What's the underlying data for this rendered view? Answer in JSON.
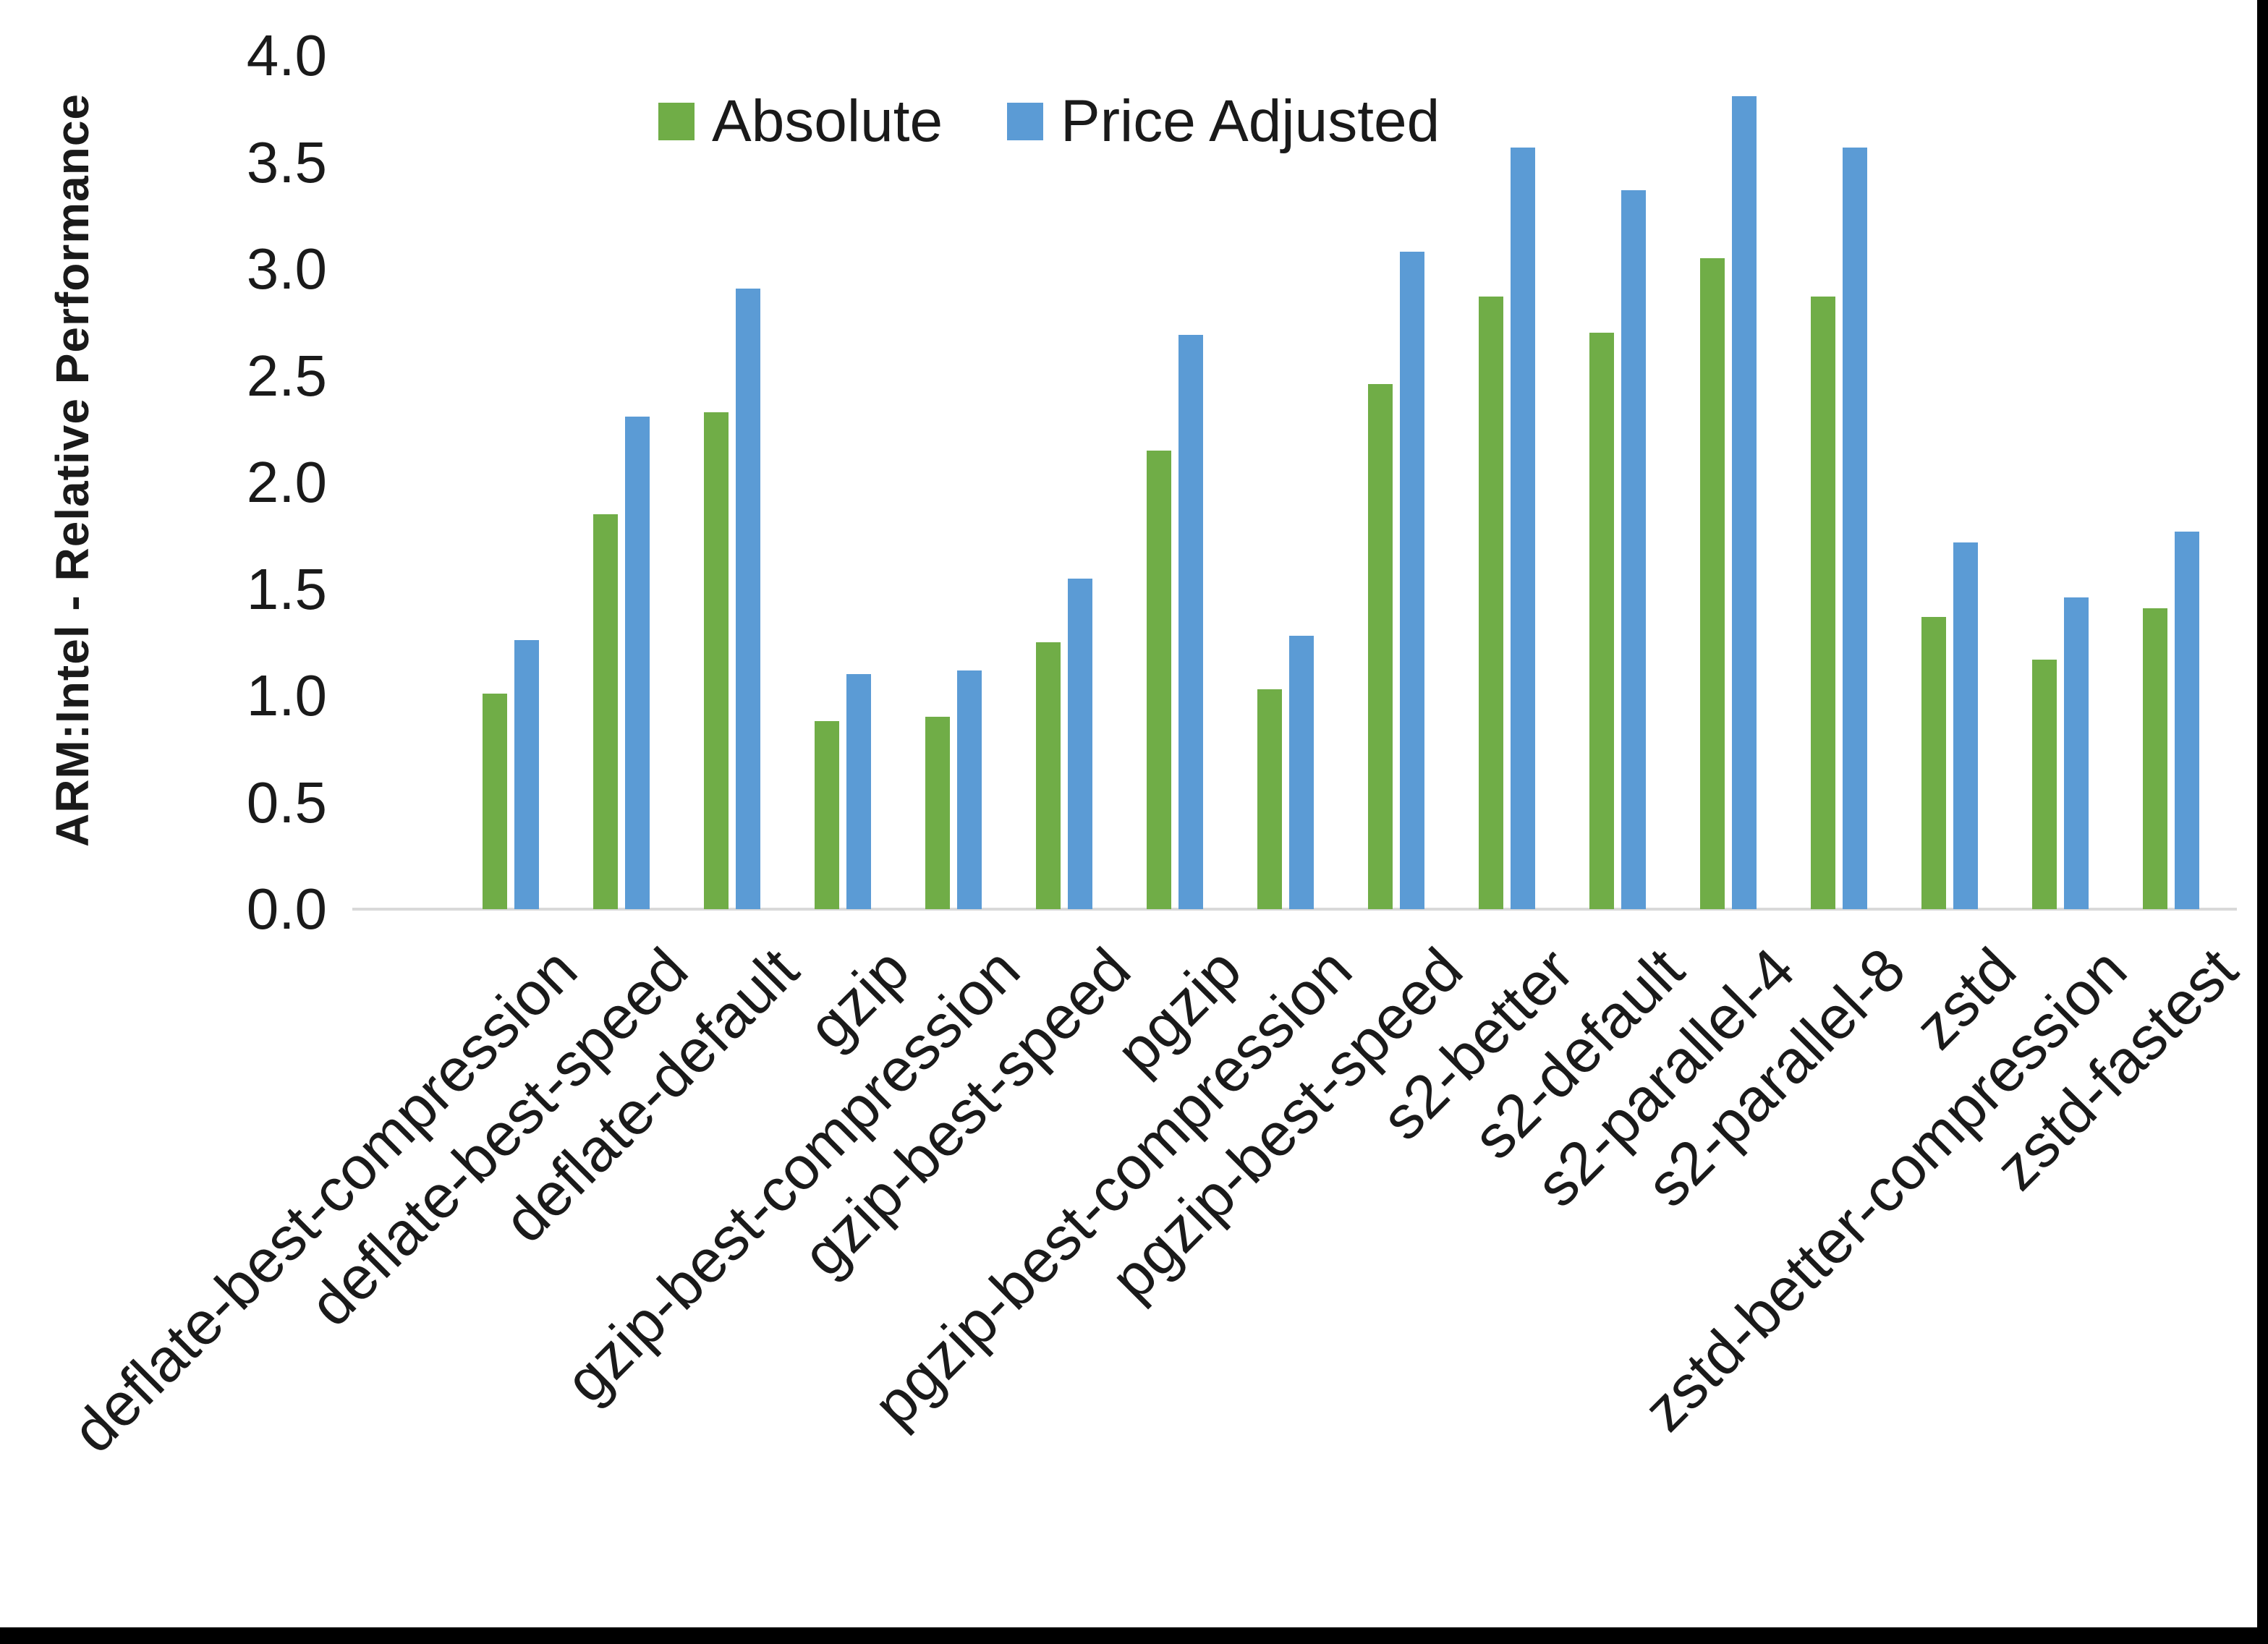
{
  "figure": {
    "y_axis_title": "ARM:Intel - Relative Performance"
  },
  "legend": {
    "items": [
      {
        "label": "Absolute",
        "color": "#70AD47"
      },
      {
        "label": "Price Adjusted",
        "color": "#5B9BD5"
      }
    ],
    "position": "top"
  },
  "chart_data": {
    "type": "bar",
    "title": "",
    "xlabel": "",
    "ylabel": "ARM:Intel - Relative Performance",
    "ylim": [
      0,
      4
    ],
    "ytick_step": 0.5,
    "ytick_labels": [
      "0.0",
      "0.5",
      "1.0",
      "1.5",
      "2.0",
      "2.5",
      "3.0",
      "3.5",
      "4.0"
    ],
    "grid": false,
    "legend_position": "top",
    "categories": [
      "deflate-best-compression",
      "deflate-best-speed",
      "deflate-default",
      "gzip",
      "gzip-best-compression",
      "gzip-best-speed",
      "pgzip",
      "pgzip-best-compression",
      "pgzip-best-speed",
      "s2-better",
      "s2-default",
      "s2-parallel-4",
      "s2-parallel-8",
      "zstd",
      "zstd-better-compression",
      "zstd-fastest"
    ],
    "series": [
      {
        "name": "Absolute",
        "color": "#70AD47",
        "values": [
          1.01,
          1.85,
          2.33,
          0.88,
          0.9,
          1.25,
          2.15,
          1.03,
          2.46,
          2.87,
          2.7,
          3.05,
          2.87,
          1.37,
          1.17,
          1.41
        ]
      },
      {
        "name": "Price Adjusted",
        "color": "#5B9BD5",
        "values": [
          1.26,
          2.31,
          2.91,
          1.1,
          1.12,
          1.55,
          2.69,
          1.28,
          3.08,
          3.57,
          3.37,
          3.81,
          3.57,
          1.72,
          1.46,
          1.77
        ]
      }
    ],
    "colors": {
      "axis_line": "#D9D9D9",
      "text": "#1a1a1a",
      "frame": "#000000"
    }
  }
}
